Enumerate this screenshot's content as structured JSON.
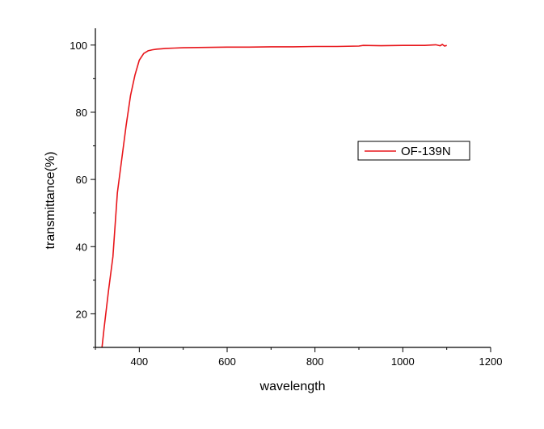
{
  "chart_data": {
    "type": "line",
    "title": "",
    "xlabel": "wavelength",
    "ylabel": "transmittance(%)",
    "xlim": [
      300,
      1200
    ],
    "ylim": [
      10,
      105
    ],
    "x_major_ticks": [
      400,
      600,
      800,
      1000,
      1200
    ],
    "y_major_ticks": [
      20,
      40,
      60,
      80,
      100
    ],
    "grid": false,
    "legend_position": "right-middle",
    "series": [
      {
        "name": "OF-139N",
        "color": "#e8161b",
        "x": [
          315,
          320,
          330,
          340,
          350,
          360,
          370,
          380,
          390,
          400,
          410,
          420,
          430,
          440,
          450,
          460,
          480,
          500,
          550,
          600,
          650,
          700,
          750,
          800,
          850,
          900,
          910,
          950,
          1000,
          1050,
          1075,
          1085,
          1090,
          1095,
          1100
        ],
        "y": [
          10,
          16,
          27,
          37,
          56,
          66,
          76,
          85,
          91,
          95.5,
          97.5,
          98.3,
          98.6,
          98.8,
          98.9,
          99.0,
          99.1,
          99.2,
          99.3,
          99.4,
          99.4,
          99.5,
          99.5,
          99.6,
          99.6,
          99.7,
          99.9,
          99.8,
          99.9,
          99.9,
          100.1,
          99.8,
          100.2,
          99.7,
          99.9
        ]
      }
    ]
  }
}
